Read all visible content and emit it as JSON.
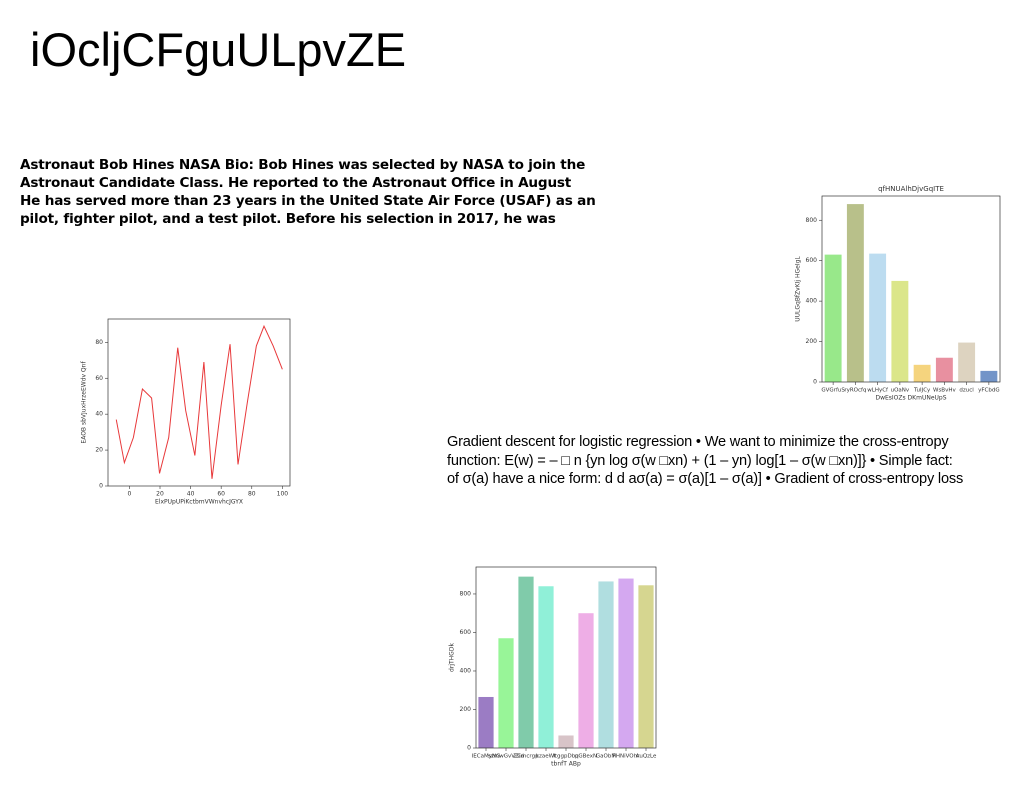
{
  "title": "iOcljCFguULpvZE",
  "paragraphs": [
    [
      "Astronaut Bob Hines NASA Bio: Bob Hines was selected by NASA to join the",
      "Astronaut Candidate Class. He reported to the Astronaut Office in August",
      "He has served more than 23 years in the United State Air Force (USAF) as an",
      "pilot, fighter pilot, and a test pilot. Before his selection in 2017, he was"
    ],
    [
      "Gradient descent for logistic regression • We want to minimize the cross-entropy",
      "function: E(w) = – □ n {yn log σ(w □xn) + (1 – yn) log[1 – σ(w □xn)]} • Simple fact:",
      "of σ(a) have a nice form: d d aσ(a) = σ(a)[1 – σ(a)] • Gradient of cross-entropy loss"
    ]
  ],
  "chart_data": [
    {
      "type": "bar",
      "title": "qfHNUAlhDjvGqITE",
      "xlabel": "DwEsIOZs DKmUNeUpS",
      "ylabel": "UULGqBfZvKIj HGeIgL",
      "categories": [
        "GVGrfuS",
        "ryROcfq",
        "wLHyCf",
        "uOaNv",
        "TuIJCy",
        "WsBvHv",
        "dzucl",
        "yFCbdG"
      ],
      "values": [
        630,
        880,
        635,
        500,
        85,
        120,
        195,
        55
      ],
      "colors": [
        "#98e88a",
        "#b8c08a",
        "#bcdcf0",
        "#dbe68a",
        "#f5d47e",
        "#e890a0",
        "#ddd3c0",
        "#7294c8"
      ],
      "ylim": [
        0,
        920
      ],
      "yticks": [
        0,
        200,
        400,
        600,
        800
      ]
    },
    {
      "type": "line",
      "xlabel": "ElxPUpUPiKctbmVWnvhcJGYX",
      "ylabel": "EAOB sbVJuxHrzeEWdv Qnf",
      "x": [
        -8.6,
        -3.3,
        2.6,
        8.5,
        14.5,
        19.7,
        25.7,
        31.6,
        36.8,
        42.8,
        48.7,
        54,
        60,
        65.8,
        71,
        77,
        83,
        88,
        94,
        100
      ],
      "values": [
        37,
        13,
        27,
        54,
        49,
        7,
        27,
        77,
        42,
        17,
        69,
        4,
        45,
        79,
        12,
        46,
        78,
        89,
        78,
        65
      ],
      "color": "#e8383a",
      "xlim": [
        -14,
        105
      ],
      "ylim": [
        0,
        93
      ],
      "xticks": [
        0,
        20,
        40,
        60,
        80,
        100
      ],
      "yticks": [
        0,
        20,
        40,
        60,
        80
      ]
    },
    {
      "type": "bar",
      "xlabel": "tbnfT ABp",
      "ylabel": "drjTHGDk",
      "categories": [
        "IECaMyNG",
        "szmwGvVZid",
        "ZCmcrgp",
        "kzaeWt",
        "ltggpDbq",
        "pGBexN",
        "GaObM",
        "FHNiVOhr",
        "AuQzLe"
      ],
      "values": [
        265,
        570,
        890,
        840,
        65,
        700,
        865,
        880,
        845
      ],
      "colors": [
        "#9b7cc4",
        "#98f598",
        "#80cbaa",
        "#90f0d8",
        "#d8c4c8",
        "#eeaee6",
        "#b0dee0",
        "#d4a8f0",
        "#d6d690"
      ],
      "ylim": [
        0,
        940
      ],
      "yticks": [
        0,
        200,
        400,
        600,
        800
      ]
    }
  ]
}
